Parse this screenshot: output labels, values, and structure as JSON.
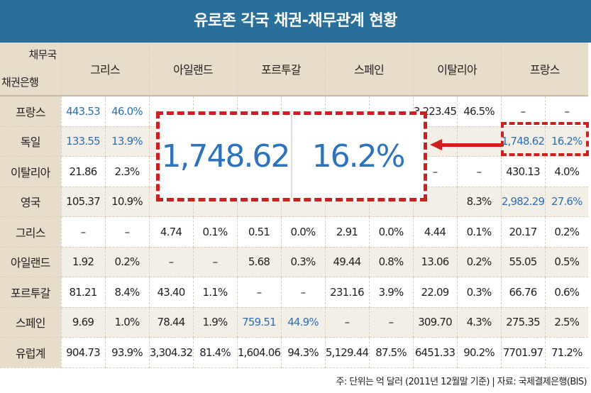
{
  "title": "유로존 각국 채권-채무관계 현황",
  "corner": {
    "debtor_label": "채무국",
    "creditor_label": "채권은행"
  },
  "debtors": [
    "그리스",
    "아일랜드",
    "포르투갈",
    "스페인",
    "이탈리아",
    "프랑스"
  ],
  "rows": [
    {
      "label": "프랑스",
      "cells": [
        "443.53",
        "46.0%",
        "",
        "",
        "",
        "",
        "",
        "",
        "3,223.45",
        "46.5%",
        "–",
        "–"
      ]
    },
    {
      "label": "독일",
      "cells": [
        "133.55",
        "13.9%",
        "",
        "",
        "",
        "",
        "",
        "",
        "",
        "",
        "1,748.62",
        "16.2%"
      ]
    },
    {
      "label": "이탈리아",
      "cells": [
        "21.86",
        "2.3%",
        "",
        "",
        "",
        "",
        "",
        "",
        "–",
        "–",
        "430.13",
        "4.0%"
      ]
    },
    {
      "label": "영국",
      "cells": [
        "105.37",
        "10.9%",
        "",
        "",
        "",
        "",
        "",
        "",
        "",
        "8.3%",
        "2,982.29",
        "27.6%"
      ]
    },
    {
      "label": "그리스",
      "cells": [
        "–",
        "–",
        "4.74",
        "0.1%",
        "0.51",
        "0.0%",
        "2.91",
        "0.0%",
        "4.44",
        "0.1%",
        "20.17",
        "0.2%"
      ]
    },
    {
      "label": "아일랜드",
      "cells": [
        "1.92",
        "0.2%",
        "–",
        "–",
        "5.68",
        "0.3%",
        "49.44",
        "0.8%",
        "13.06",
        "0.2%",
        "55.05",
        "0.5%"
      ]
    },
    {
      "label": "포르투갈",
      "cells": [
        "81.21",
        "8.4%",
        "43.40",
        "1.1%",
        "–",
        "–",
        "231.16",
        "3.9%",
        "22.09",
        "0.3%",
        "66.76",
        "0.6%"
      ]
    },
    {
      "label": "스페인",
      "cells": [
        "9.69",
        "1.0%",
        "78.44",
        "1.9%",
        "759.51",
        "44.9%",
        "–",
        "–",
        "309.70",
        "4.3%",
        "275.35",
        "2.5%"
      ]
    },
    {
      "label": "유럽계",
      "cells": [
        "904.73",
        "93.9%",
        "3,304.32",
        "81.4%",
        "1,604.06",
        "94.3%",
        "5,129.44",
        "87.5%",
        "6451.33",
        "90.2%",
        "7701.97",
        "71.2%"
      ]
    }
  ],
  "zoom": {
    "value": "1,748.62",
    "percent": "16.2%"
  },
  "colors": {
    "title_bg": "#2a6f99",
    "header_bg": "#e7ddcb",
    "highlight": "#2e6fb3",
    "annotation": "#cc1f1f"
  },
  "footnote": "주: 단위는 억 달러 (2011년 12월말 기준) | 자료: 국제결제은행(BIS)"
}
